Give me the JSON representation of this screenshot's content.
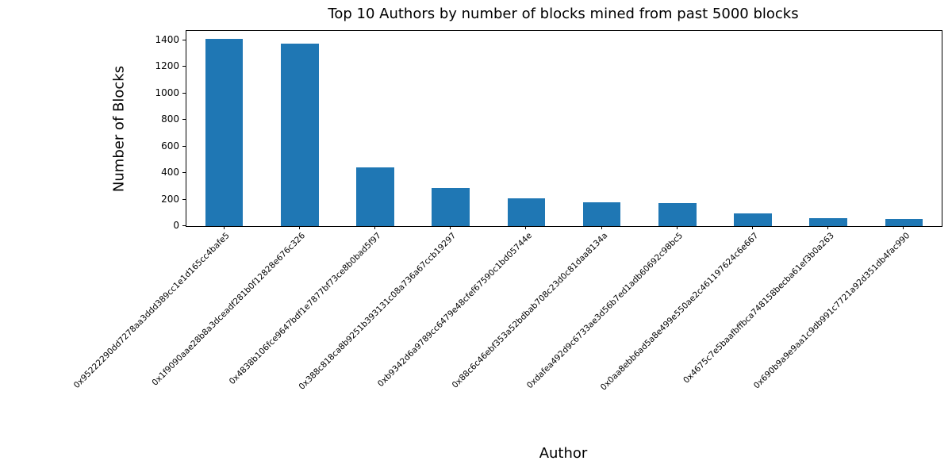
{
  "chart_data": {
    "type": "bar",
    "title": "Top 10 Authors by number of blocks mined from past 5000 blocks",
    "xlabel": "Author",
    "ylabel": "Number of Blocks",
    "categories": [
      "0x95222290dd7278aa3ddd389cc1e1d165cc4bafe5",
      "0x1f9090aae28b8a3dceadf281b0f12828e676c326",
      "0x4838b106fce9647bdf1e7877bf73ce8b0bad5f97",
      "0x388c818ca8b9251b393131c08a736a67ccb19297",
      "0xb9342d6a9789cc6479e48cfef67590c1bd05744e",
      "0x88c6c46ebf353a52bdbab708c23d0c81daa8134a",
      "0xdafea492d9c6733ae3d56b7ed1adb60692c98bc5",
      "0x0aa8ebb6ad5a8e499e550ae2c461197624c6e667",
      "0x4675c7e5baafbffbca748158becba61ef3b0a263",
      "0x690b9a9e9aa1c9db991c7721a92d351db4fac990"
    ],
    "values": [
      1410,
      1375,
      445,
      288,
      210,
      180,
      172,
      93,
      60,
      54
    ],
    "yticks": [
      0,
      200,
      400,
      600,
      800,
      1000,
      1200,
      1400
    ],
    "ylim": [
      0,
      1470
    ],
    "bar_color": "#1f77b4",
    "axis_color": "#000000",
    "text_color": "#000000",
    "grid": false,
    "legend": "none",
    "xtick_rotation_deg": 45,
    "bar_width_fraction": 0.5
  }
}
